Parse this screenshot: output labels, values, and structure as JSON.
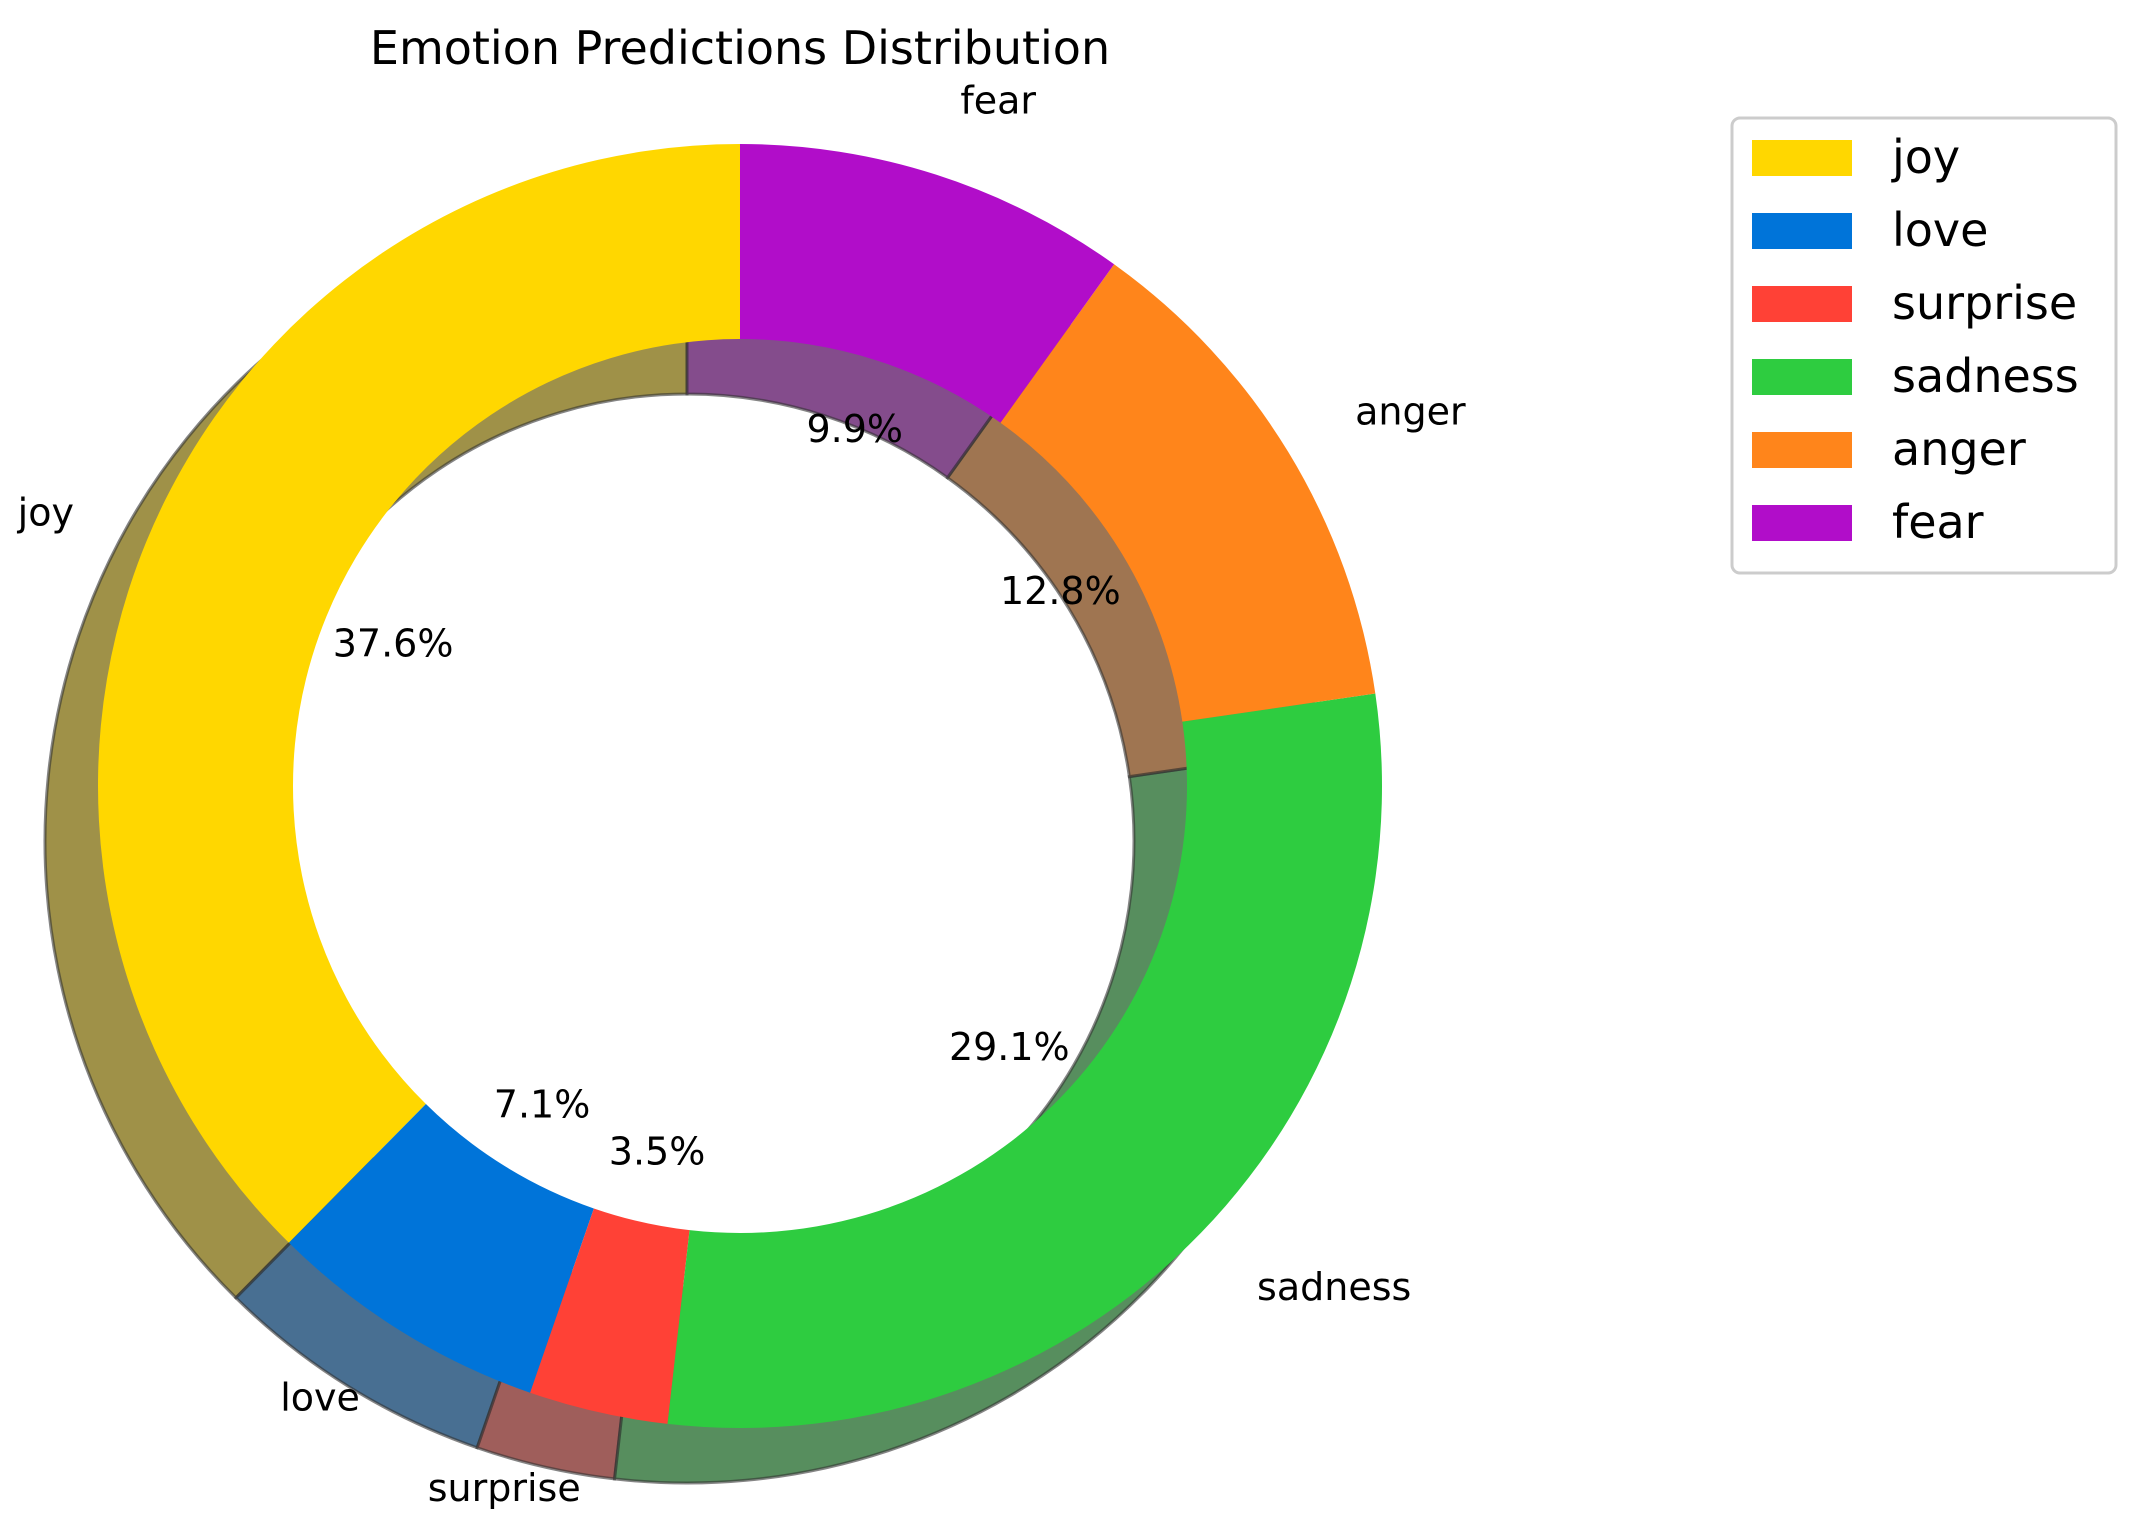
{
  "chart_data": {
    "type": "pie",
    "variant": "donut",
    "title": "Emotion Predictions Distribution",
    "start_angle_deg": 90,
    "direction": "counterclockwise",
    "shadow": true,
    "legend_position": "top-right",
    "slices": [
      {
        "label": "joy",
        "value": 37.6,
        "pct_label": "37.6%",
        "color": "#FFD700"
      },
      {
        "label": "love",
        "value": 7.1,
        "pct_label": "7.1%",
        "color": "#0074D9"
      },
      {
        "label": "surprise",
        "value": 3.5,
        "pct_label": "3.5%",
        "color": "#FF4136"
      },
      {
        "label": "sadness",
        "value": 29.1,
        "pct_label": "29.1%",
        "color": "#2ECC40"
      },
      {
        "label": "anger",
        "value": 12.8,
        "pct_label": "12.8%",
        "color": "#FF851B"
      },
      {
        "label": "fear",
        "value": 9.9,
        "pct_label": "9.9%",
        "color": "#B10DC9"
      }
    ]
  }
}
